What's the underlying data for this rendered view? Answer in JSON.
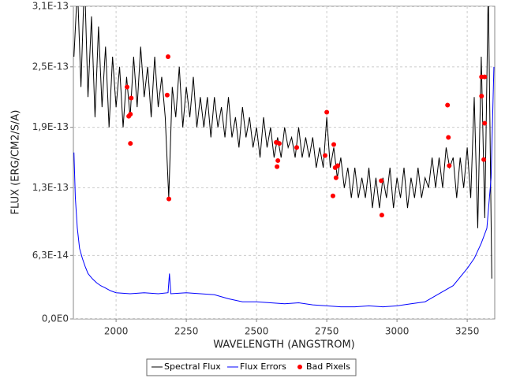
{
  "chart_data": {
    "type": "line",
    "xlabel": "WAVELENGTH (ANGSTROM)",
    "ylabel": "FLUX (ERG/CM2/S/A)",
    "xlim": [
      1848,
      3348
    ],
    "ylim": [
      0,
      3.1e-13
    ],
    "xticks": [
      2000,
      2250,
      2500,
      2750,
      3000,
      3250
    ],
    "yticks": [
      {
        "value": 0,
        "label": "0,0E0"
      },
      {
        "value": 6.3e-14,
        "label": "6,3E-14"
      },
      {
        "value": 1.3e-13,
        "label": "1,3E-13"
      },
      {
        "value": 1.9e-13,
        "label": "1,9E-13"
      },
      {
        "value": 2.5e-13,
        "label": "2,5E-13"
      },
      {
        "value": 3.1e-13,
        "label": "3,1E-13"
      }
    ],
    "grid": true,
    "legend": "bottom",
    "series": [
      {
        "name": "Spectral Flux",
        "color": "#000000",
        "style": "line",
        "x": [
          1850,
          1862.5,
          1875,
          1887.5,
          1900,
          1912.5,
          1925,
          1937.5,
          1950,
          1962.5,
          1975,
          1987.5,
          2000,
          2012.5,
          2025,
          2037.5,
          2050,
          2062.5,
          2075,
          2087.5,
          2100,
          2112.5,
          2125,
          2137.5,
          2150,
          2162.5,
          2175,
          2187.5,
          2200,
          2212.5,
          2225,
          2237.5,
          2250,
          2262.5,
          2275,
          2287.5,
          2300,
          2312.5,
          2325,
          2337.5,
          2350,
          2362.5,
          2375,
          2387.5,
          2400,
          2412.5,
          2425,
          2437.5,
          2450,
          2462.5,
          2475,
          2487.5,
          2500,
          2512.5,
          2525,
          2537.5,
          2550,
          2562.5,
          2575,
          2587.5,
          2600,
          2612.5,
          2625,
          2637.5,
          2650,
          2662.5,
          2675,
          2687.5,
          2700,
          2712.5,
          2725,
          2737.5,
          2750,
          2762.5,
          2775,
          2787.5,
          2800,
          2812.5,
          2825,
          2837.5,
          2850,
          2862.5,
          2875,
          2887.5,
          2900,
          2912.5,
          2925,
          2937.5,
          2950,
          2962.5,
          2975,
          2987.5,
          3000,
          3012.5,
          3025,
          3037.5,
          3050,
          3062.5,
          3075,
          3087.5,
          3100,
          3112.5,
          3125,
          3137.5,
          3150,
          3162.5,
          3175,
          3187.5,
          3200,
          3212.5,
          3225,
          3237.5,
          3250,
          3262.5,
          3275,
          3287.5,
          3300,
          3312.5,
          3325,
          3337.5
        ],
        "values": [
          2.6e-13,
          3.3e-13,
          2.3e-13,
          3.4e-13,
          2.2e-13,
          3e-13,
          2e-13,
          2.9e-13,
          2.1e-13,
          2.7e-13,
          1.9e-13,
          2.6e-13,
          2.1e-13,
          2.5e-13,
          1.9e-13,
          2.4e-13,
          2e-13,
          2.6e-13,
          2.1e-13,
          2.7e-13,
          2.2e-13,
          2.5e-13,
          2e-13,
          2.6e-13,
          2.1e-13,
          2.4e-13,
          2e-13,
          1.2e-13,
          2.3e-13,
          2e-13,
          2.5e-13,
          1.9e-13,
          2.3e-13,
          2e-13,
          2.4e-13,
          1.9e-13,
          2.2e-13,
          1.9e-13,
          2.2e-13,
          1.8e-13,
          2.2e-13,
          1.9e-13,
          2.1e-13,
          1.8e-13,
          2.2e-13,
          1.8e-13,
          2e-13,
          1.7e-13,
          2.1e-13,
          1.8e-13,
          2e-13,
          1.7e-13,
          1.9e-13,
          1.6e-13,
          2e-13,
          1.7e-13,
          1.9e-13,
          1.6e-13,
          1.8e-13,
          1.6e-13,
          1.9e-13,
          1.7e-13,
          1.8e-13,
          1.6e-13,
          1.9e-13,
          1.6e-13,
          1.8e-13,
          1.6e-13,
          1.8e-13,
          1.5e-13,
          1.7e-13,
          1.5e-13,
          2e-13,
          1.5e-13,
          1.7e-13,
          1.4e-13,
          1.6e-13,
          1.3e-13,
          1.5e-13,
          1.2e-13,
          1.5e-13,
          1.2e-13,
          1.4e-13,
          1.2e-13,
          1.5e-13,
          1.1e-13,
          1.4e-13,
          1.1e-13,
          1.4e-13,
          1.2e-13,
          1.5e-13,
          1.1e-13,
          1.4e-13,
          1.2e-13,
          1.5e-13,
          1.1e-13,
          1.4e-13,
          1.2e-13,
          1.5e-13,
          1.2e-13,
          1.4e-13,
          1.3e-13,
          1.6e-13,
          1.3e-13,
          1.6e-13,
          1.3e-13,
          1.7e-13,
          1.5e-13,
          1.6e-13,
          1.2e-13,
          1.6e-13,
          1.3e-13,
          1.7e-13,
          1.2e-13,
          2.2e-13,
          9e-14,
          2.6e-13,
          1e-13,
          3.3e-13,
          4e-14
        ]
      },
      {
        "name": "Flux Errors",
        "color": "#0000ff",
        "style": "line",
        "x": [
          1850,
          1855,
          1862,
          1870,
          1880,
          1890,
          1900,
          1915,
          1930,
          1945,
          1960,
          1980,
          2000,
          2050,
          2100,
          2150,
          2185,
          2190,
          2195,
          2250,
          2300,
          2350,
          2400,
          2450,
          2500,
          2550,
          2600,
          2650,
          2700,
          2750,
          2800,
          2850,
          2900,
          2950,
          3000,
          3050,
          3100,
          3150,
          3200,
          3250,
          3275,
          3300,
          3320,
          3335,
          3345
        ],
        "values": [
          1.65e-13,
          1.2e-13,
          9e-14,
          7e-14,
          6e-14,
          5.2e-14,
          4.5e-14,
          4e-14,
          3.6e-14,
          3.3e-14,
          3.1e-14,
          2.8e-14,
          2.6e-14,
          2.5e-14,
          2.6e-14,
          2.5e-14,
          2.6e-14,
          4.5e-14,
          2.5e-14,
          2.6e-14,
          2.5e-14,
          2.4e-14,
          2e-14,
          1.7e-14,
          1.7e-14,
          1.6e-14,
          1.5e-14,
          1.6e-14,
          1.4e-14,
          1.3e-14,
          1.2e-14,
          1.2e-14,
          1.3e-14,
          1.2e-14,
          1.3e-14,
          1.5e-14,
          1.7e-14,
          2.5e-14,
          3.3e-14,
          5e-14,
          6e-14,
          7.5e-14,
          9e-14,
          1.4e-13,
          2.5e-13
        ]
      },
      {
        "name": "Bad Pixels",
        "color": "#ff0000",
        "style": "points",
        "x": [
          2039,
          2045,
          2051,
          2054,
          2051,
          2185,
          2182,
          2188,
          2570,
          2581,
          2573,
          2576,
          2643,
          2750,
          2744,
          2775,
          2780,
          2783,
          2772,
          2789,
          2946,
          2944,
          3180,
          3183,
          3186,
          3301,
          3312,
          3301,
          3312,
          3309
        ],
        "values": [
          2.3e-13,
          2.01e-13,
          2.03e-13,
          2.19e-13,
          1.74e-13,
          2.6e-13,
          2.22e-13,
          1.19e-13,
          1.75e-13,
          1.74e-13,
          1.51e-13,
          1.57e-13,
          1.7e-13,
          2.05e-13,
          1.62e-13,
          1.73e-13,
          1.5e-13,
          1.4e-13,
          1.22e-13,
          1.52e-13,
          1.03e-13,
          1.37e-13,
          2.12e-13,
          1.8e-13,
          1.52e-13,
          2.4e-13,
          2.4e-13,
          2.21e-13,
          1.94e-13,
          1.58e-13
        ]
      }
    ]
  }
}
